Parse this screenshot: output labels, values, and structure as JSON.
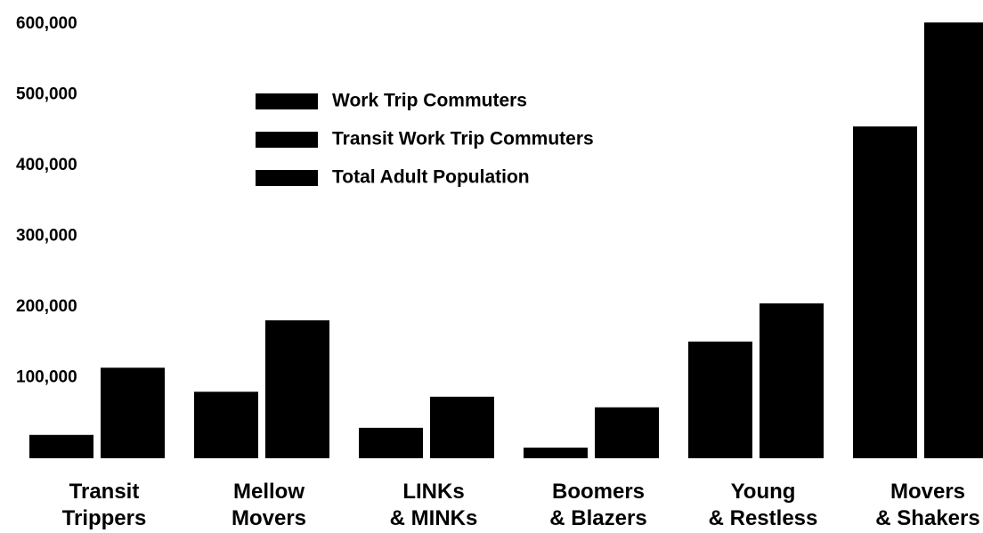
{
  "chart_data": {
    "type": "bar",
    "categories": [
      "Transit Trippers",
      "Mellow Movers",
      "LINKs & MINKs",
      "Boomers & Blazers",
      "Young & Restless",
      "Movers & Shakers"
    ],
    "series": [
      {
        "name": "Work Trip Commuters",
        "color": "#000000",
        "values": [
          33000,
          94000,
          43000,
          15000,
          165000,
          469000
        ]
      },
      {
        "name": "Transit Work Trip Commuters",
        "color": "#000000",
        "values": [
          128000,
          195000,
          87000,
          72000,
          219000,
          616000
        ]
      },
      {
        "name": "Total Adult Population",
        "color": "#000000",
        "values": [
          null,
          null,
          null,
          null,
          null,
          null
        ]
      }
    ],
    "ylim": [
      0,
      620000
    ],
    "yticks": [
      {
        "value": 100000,
        "label": "100,000"
      },
      {
        "value": 200000,
        "label": "200,000"
      },
      {
        "value": 300000,
        "label": "300,000"
      },
      {
        "value": 400000,
        "label": "400,000"
      },
      {
        "value": 500000,
        "label": "500,000"
      },
      {
        "value": 600000,
        "label": "600,000"
      }
    ],
    "grid": false,
    "legend": "upper left"
  }
}
